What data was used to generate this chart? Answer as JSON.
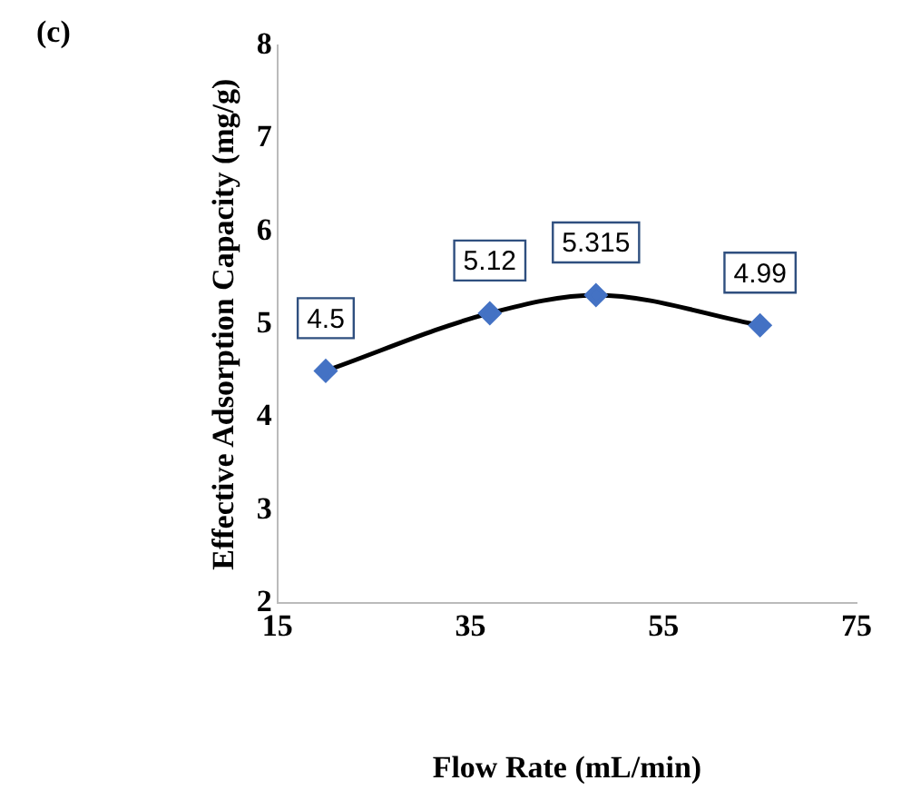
{
  "chart_data": {
    "type": "line",
    "xlabel": "Flow Rate (mL/min)",
    "ylabel": "Effective Adsorption Capacity (mg/g)",
    "annotations": [
      "(c)"
    ],
    "x": [
      20,
      37,
      48,
      65
    ],
    "series": [
      {
        "color": "#000000",
        "colors": [
          "#4472c4",
          "#4472c4",
          "#4472c4",
          "#4472c4"
        ],
        "values": [
          4.5,
          5.12,
          5.315,
          4.99
        ]
      }
    ],
    "xlim": [
      15,
      75
    ],
    "xticks": [
      15,
      35,
      55,
      75
    ],
    "ylim": [
      2,
      8
    ],
    "yticks": [
      2,
      3,
      4,
      5,
      6,
      7,
      8
    ],
    "grid": false,
    "legend": false,
    "marker": "diamond",
    "data_labels": true
  }
}
